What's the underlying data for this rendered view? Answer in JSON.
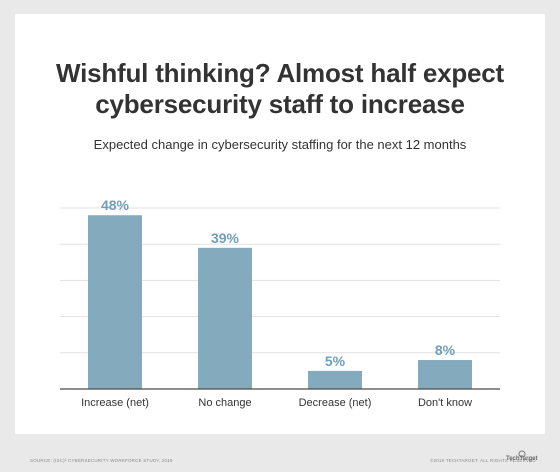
{
  "header": {
    "title_line1": "Wishful thinking? Almost half expect",
    "title_line2": "cybersecurity staff to increase",
    "subtitle": "Expected change in cybersecurity staffing for the next 12 months"
  },
  "footer": {
    "source": "SOURCE: (ISC)² CYBERSECURITY WORKFORCE STUDY, 2019",
    "copyright": "©2019 TECHTARGET. ALL RIGHTS RESERVED",
    "logo_text": "TechTarget"
  },
  "colors": {
    "bar": "#84aabd",
    "label": "#6f9fb8",
    "grid": "#e1e1e1",
    "axis": "#4a4a4a"
  },
  "chart_data": {
    "type": "bar",
    "categories": [
      "Increase (net)",
      "No change",
      "Decrease (net)",
      "Don't know"
    ],
    "values": [
      48,
      39,
      5,
      8
    ],
    "value_labels": [
      "48%",
      "39%",
      "5%",
      "8%"
    ],
    "title": "Wishful thinking? Almost half expect cybersecurity staff to increase",
    "subtitle": "Expected change in cybersecurity staffing for the next 12 months",
    "xlabel": "",
    "ylabel": "",
    "ylim": [
      0,
      50
    ],
    "grid": true,
    "grid_step": 10,
    "legend": "none"
  }
}
